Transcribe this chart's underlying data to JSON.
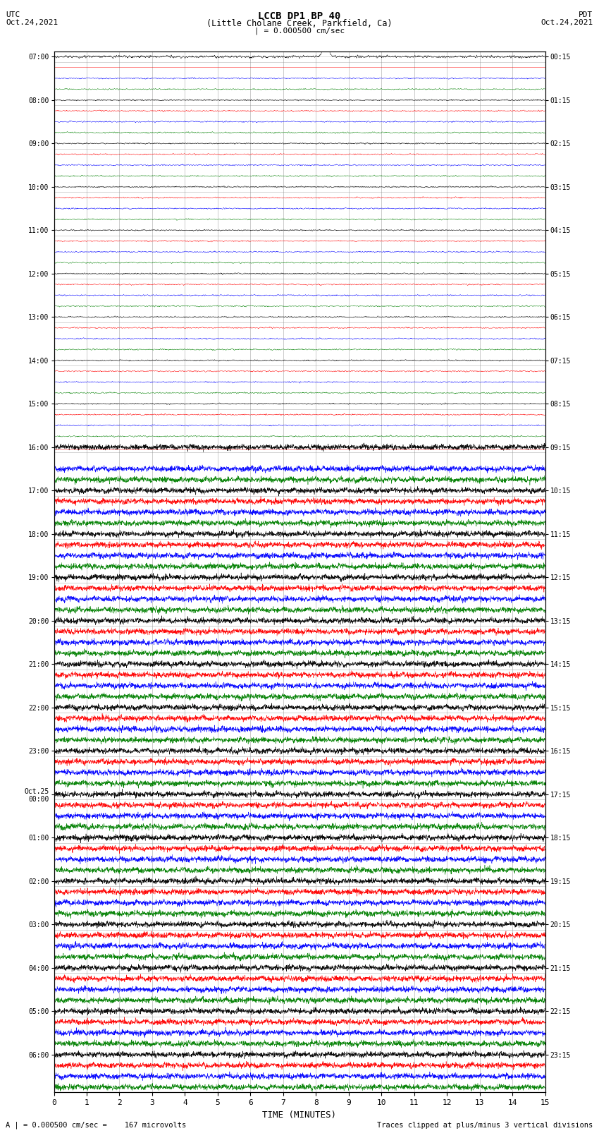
{
  "title_line1": "LCCB DP1 BP 40",
  "title_line2": "(Little Cholane Creek, Parkfield, Ca)",
  "scale_bar": "| = 0.000500 cm/sec",
  "utc_label": "UTC",
  "pdt_label": "PDT",
  "date_left": "Oct.24,2021",
  "date_right": "Oct.24,2021",
  "xlabel": "TIME (MINUTES)",
  "footer_left": "A | = 0.000500 cm/sec =    167 microvolts",
  "footer_right": "Traces clipped at plus/minus 3 vertical divisions",
  "xlim": [
    0,
    15
  ],
  "xticks": [
    0,
    1,
    2,
    3,
    4,
    5,
    6,
    7,
    8,
    9,
    10,
    11,
    12,
    13,
    14,
    15
  ],
  "n_hours": 24,
  "traces_per_hour": 4,
  "colors_cycle": [
    "black",
    "red",
    "blue",
    "green"
  ],
  "quiet_hours": 9,
  "grid_color": "#888888",
  "background_color": "white",
  "fig_width": 8.5,
  "fig_height": 16.13,
  "left_times": [
    "07:00",
    "08:00",
    "09:00",
    "10:00",
    "11:00",
    "12:00",
    "13:00",
    "14:00",
    "15:00",
    "16:00",
    "17:00",
    "18:00",
    "19:00",
    "20:00",
    "21:00",
    "22:00",
    "23:00",
    "Oct.25\n00:00",
    "01:00",
    "02:00",
    "03:00",
    "04:00",
    "05:00",
    "06:00"
  ],
  "right_times": [
    "00:15",
    "01:15",
    "02:15",
    "03:15",
    "04:15",
    "05:15",
    "06:15",
    "07:15",
    "08:15",
    "09:15",
    "10:15",
    "11:15",
    "12:15",
    "13:15",
    "14:15",
    "15:15",
    "16:15",
    "17:15",
    "18:15",
    "19:15",
    "20:15",
    "21:15",
    "22:15",
    "23:15"
  ]
}
